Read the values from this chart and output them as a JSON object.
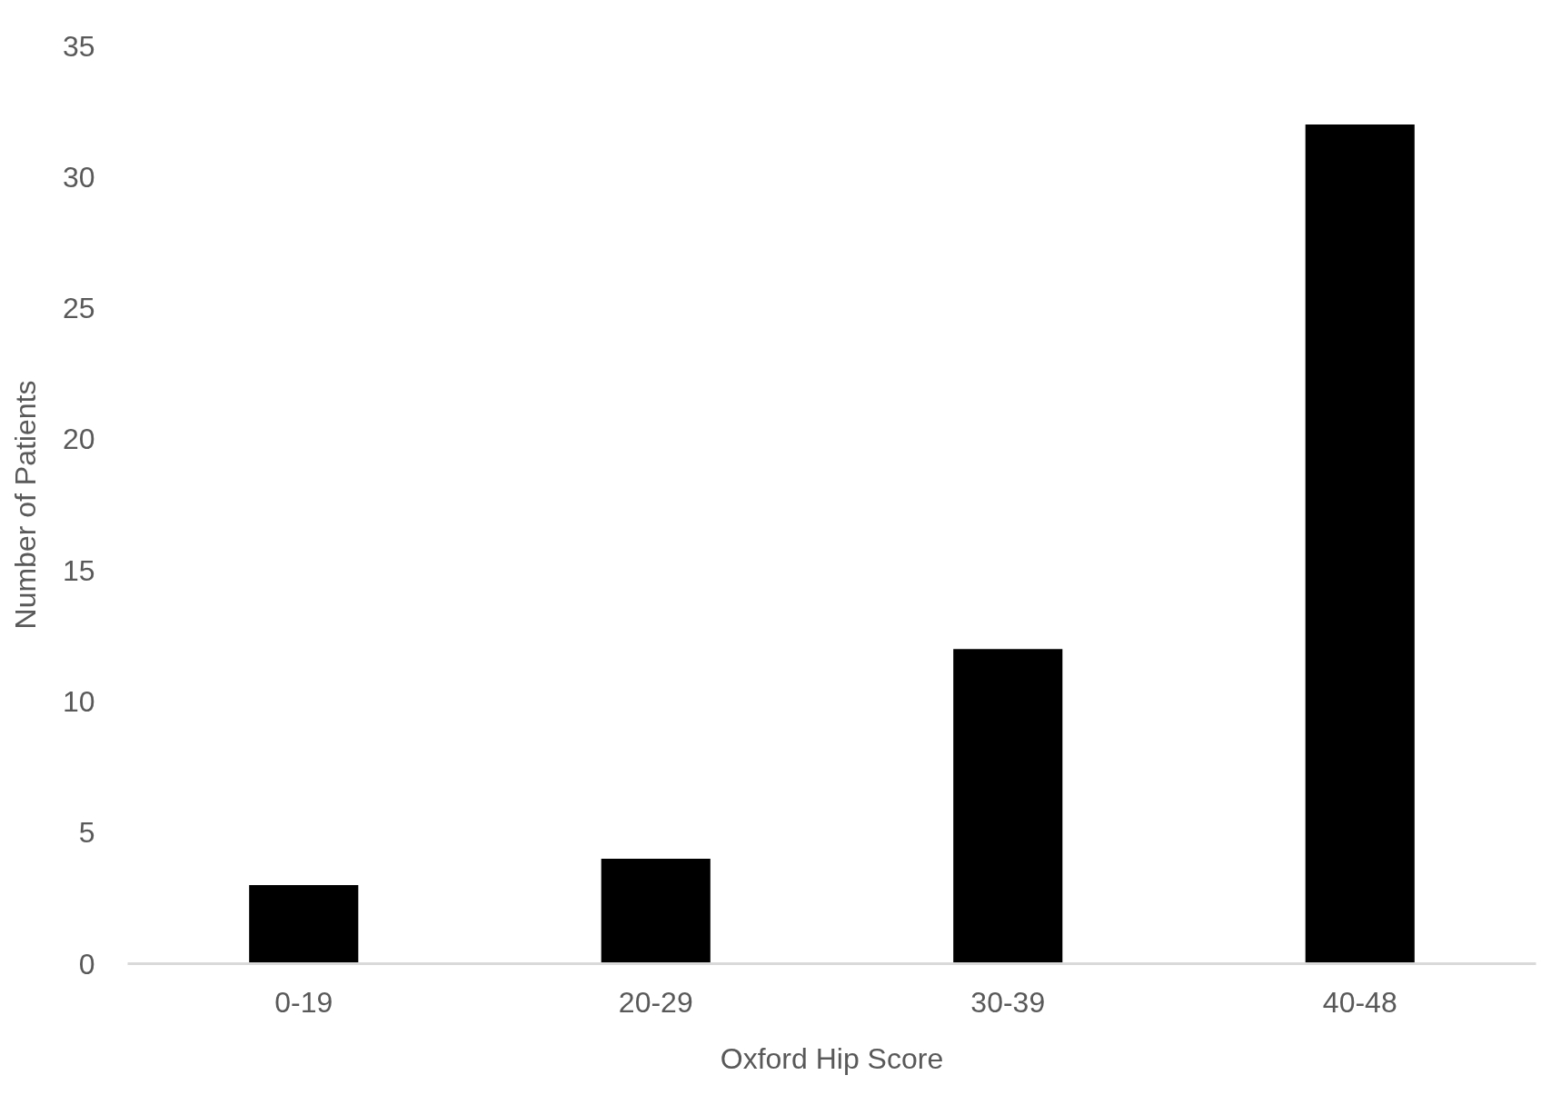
{
  "chart_data": {
    "type": "bar",
    "xlabel": "Oxford Hip Score",
    "ylabel": "Number of Patients",
    "categories": [
      "0-19",
      "20-29",
      "30-39",
      "40-48"
    ],
    "values": [
      3,
      4,
      12,
      32
    ],
    "color": "#000000",
    "ylim": [
      0,
      35
    ],
    "yticks": [
      0,
      5,
      10,
      15,
      20,
      25,
      30,
      35
    ],
    "grid": false
  }
}
